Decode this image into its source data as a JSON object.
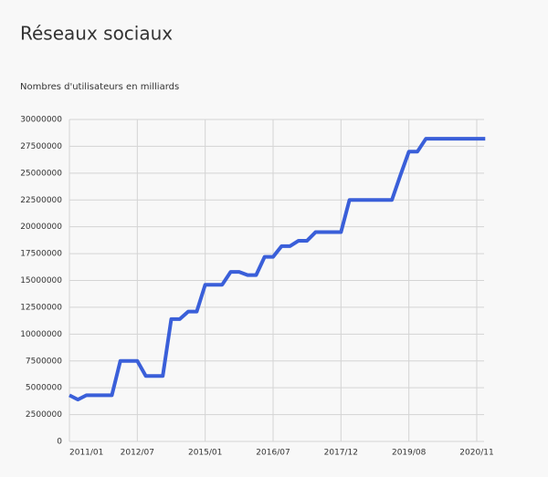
{
  "chart_data": {
    "type": "line",
    "title": "Réseaux sociaux",
    "subtitle": "Nombres d'utilisateurs en milliards",
    "categories": [
      "2011/01",
      null,
      null,
      null,
      null,
      null,
      null,
      null,
      "2012/07",
      null,
      null,
      null,
      null,
      null,
      null,
      null,
      "2015/01",
      null,
      null,
      null,
      null,
      null,
      null,
      null,
      "2016/07",
      null,
      null,
      null,
      null,
      null,
      null,
      null,
      "2017/12",
      null,
      null,
      null,
      null,
      null,
      null,
      null,
      "2019/08",
      null,
      null,
      null,
      null,
      null,
      null,
      null,
      "2020/11",
      null
    ],
    "series": [
      {
        "color": "#3a5fd9",
        "values": [
          4300000,
          3900000,
          4300000,
          4300000,
          4300000,
          4300000,
          7500000,
          7500000,
          7500000,
          6100000,
          6100000,
          6100000,
          11400000,
          11400000,
          12100000,
          12100000,
          14600000,
          14600000,
          14600000,
          15800000,
          15800000,
          15500000,
          15500000,
          17200000,
          17200000,
          18200000,
          18200000,
          18700000,
          18700000,
          19500000,
          19500000,
          19500000,
          19500000,
          22500000,
          22500000,
          22500000,
          22500000,
          22500000,
          22500000,
          24800000,
          27000000,
          27000000,
          28200000,
          28200000,
          28200000,
          28200000,
          28200000,
          28200000,
          28200000,
          28200000
        ]
      }
    ],
    "ylim": [
      0,
      30000000
    ],
    "yticks": [
      0,
      2500000,
      5000000,
      7500000,
      10000000,
      12500000,
      15000000,
      17500000,
      20000000,
      22500000,
      25000000,
      27500000,
      30000000
    ],
    "grid": true
  }
}
